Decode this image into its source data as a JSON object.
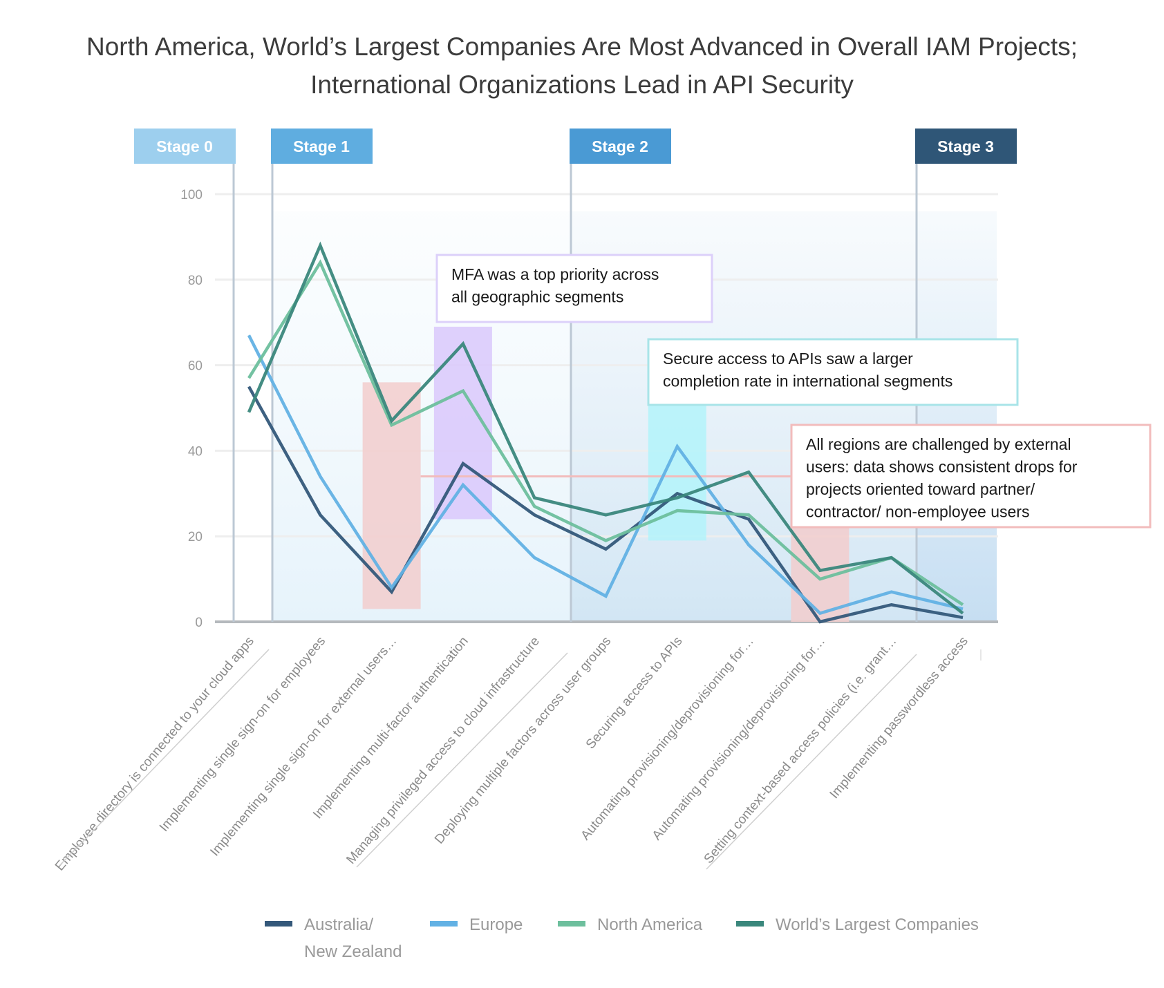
{
  "chart_data": {
    "type": "line",
    "title": [
      "North America, World’s Largest Companies Are Most Advanced in Overall IAM Projects;",
      "International Organizations Lead in API Security"
    ],
    "categories": [
      "Employee directory is connected to your cloud apps",
      "Implementing single sign-on for employees",
      "Implementing single sign-on for external users…",
      "Implementing multi-factor authentication",
      "Managing privileged access to cloud infrastructure",
      "Deploying multiple factors across user groups",
      "Securing access to APIs",
      "Automating provisioning/deprovisioning for…",
      "Automating provisioning/deprovisioning for…",
      "Setting context-based access policies (i.e. grant…",
      "Implementing passwordless access"
    ],
    "ylim": [
      0,
      100
    ],
    "yticks": [
      "0",
      "20",
      "40",
      "60",
      "80",
      "100"
    ],
    "grid": true,
    "legend_position": "bottom",
    "series": [
      {
        "name": "Australia/ New Zealand",
        "legend_lines": [
          "Australia/",
          "New Zealand"
        ],
        "color": "#34587a",
        "values": [
          55,
          25,
          7,
          37,
          25,
          17,
          30,
          24,
          0,
          4,
          1
        ]
      },
      {
        "name": "Europe",
        "legend_lines": [
          "Europe"
        ],
        "color": "#62b1e4",
        "values": [
          67,
          34,
          8,
          32,
          15,
          6,
          41,
          18,
          2,
          7,
          3
        ]
      },
      {
        "name": "North America",
        "legend_lines": [
          "North America"
        ],
        "color": "#6dbf9d",
        "values": [
          57,
          84,
          46,
          54,
          27,
          19,
          26,
          25,
          10,
          15,
          4
        ]
      },
      {
        "name": "World’s Largest Companies",
        "legend_lines": [
          "World’s Largest Companies"
        ],
        "color": "#3a877c",
        "values": [
          49,
          88,
          47,
          65,
          29,
          25,
          29,
          35,
          12,
          15,
          2
        ]
      }
    ],
    "stages": [
      {
        "label": "Stage 0",
        "color": "#9dcfee"
      },
      {
        "label": "Stage 1",
        "color": "#5fade0"
      },
      {
        "label": "Stage 2",
        "color": "#4a9ad4"
      },
      {
        "label": "Stage 3",
        "color": "#2f5677"
      }
    ],
    "annotations": [
      {
        "lines": [
          "MFA was a top priority across",
          "all geographic segments"
        ],
        "color": "#dcd0fa",
        "highlight_color": "#d9c8fb",
        "category_index": 3,
        "y_range": [
          24,
          69
        ]
      },
      {
        "lines": [
          "Secure access to APIs saw a larger",
          "completion rate in international segments"
        ],
        "color": "#a8e4e8",
        "highlight_color": "#b3f3fa",
        "category_index": 6,
        "y_range": [
          19,
          51
        ]
      },
      {
        "lines": [
          "All regions are challenged by external",
          "users: data shows consistent drops for",
          "projects oriented toward partner/",
          "contractor/ non-employee users"
        ],
        "color": "#f2bcbc",
        "highlight_color": "#f2cccc",
        "category_indices": [
          2,
          8
        ],
        "y_ranges": [
          [
            3,
            56
          ],
          [
            0,
            22
          ]
        ]
      }
    ]
  }
}
